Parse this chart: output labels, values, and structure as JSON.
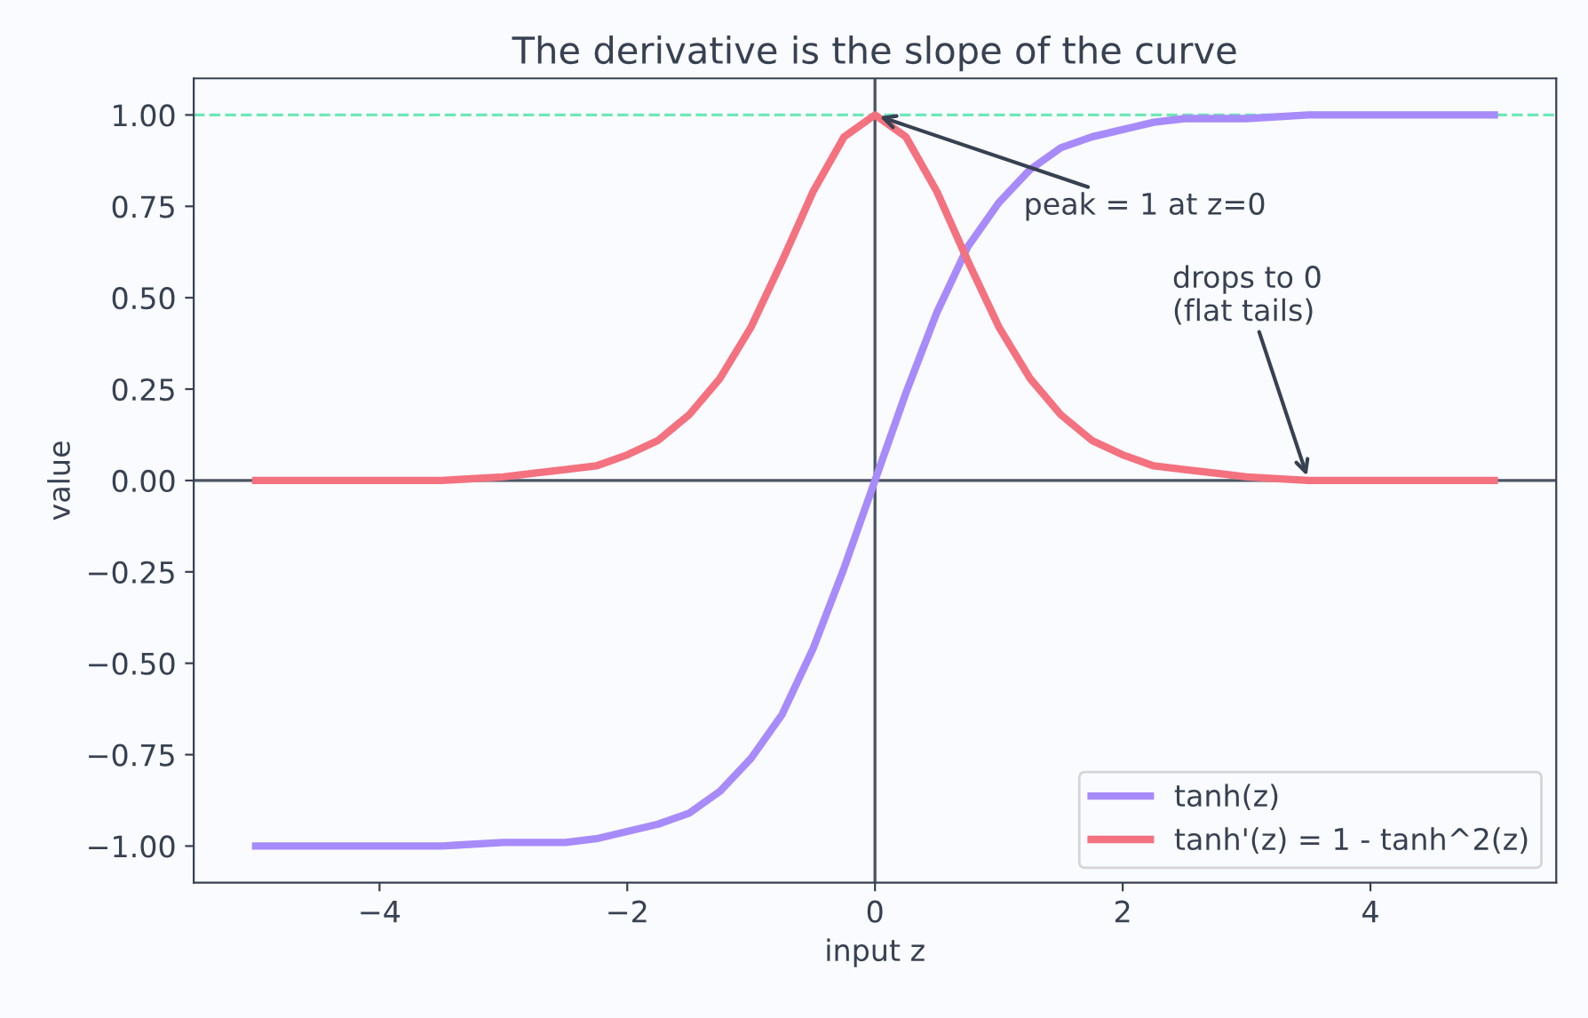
{
  "chart_data": {
    "type": "line",
    "title": "The derivative is the slope of the curve",
    "xlabel": "input z",
    "ylabel": "value",
    "x": [
      -5,
      -4.5,
      -4,
      -3.5,
      -3,
      -2.75,
      -2.5,
      -2.25,
      -2,
      -1.75,
      -1.5,
      -1.25,
      -1,
      -0.75,
      -0.5,
      -0.25,
      0,
      0.25,
      0.5,
      0.75,
      1,
      1.25,
      1.5,
      1.75,
      2,
      2.25,
      2.5,
      2.75,
      3,
      3.5,
      4,
      4.5,
      5
    ],
    "series": [
      {
        "name": "tanh(z)",
        "color": "#a78bfa",
        "values": [
          -1,
          -1,
          -1,
          -1,
          -0.99,
          -0.99,
          -0.99,
          -0.98,
          -0.96,
          -0.94,
          -0.91,
          -0.85,
          -0.76,
          -0.64,
          -0.46,
          -0.24,
          0,
          0.24,
          0.46,
          0.64,
          0.76,
          0.85,
          0.91,
          0.94,
          0.96,
          0.98,
          0.99,
          0.99,
          0.99,
          1,
          1,
          1,
          1
        ]
      },
      {
        "name": "tanh'(z) = 1 - tanh^2(z)",
        "color": "#f4717f",
        "values": [
          0,
          0,
          0,
          0,
          0.01,
          0.02,
          0.03,
          0.04,
          0.07,
          0.11,
          0.18,
          0.28,
          0.42,
          0.6,
          0.79,
          0.94,
          1,
          0.94,
          0.79,
          0.6,
          0.42,
          0.28,
          0.18,
          0.11,
          0.07,
          0.04,
          0.03,
          0.02,
          0.01,
          0,
          0,
          0,
          0
        ]
      }
    ],
    "xlim": [
      -5.5,
      5.5
    ],
    "ylim": [
      -1.1,
      1.1
    ],
    "xticks": [
      {
        "value": -4,
        "label": "−4"
      },
      {
        "value": -2,
        "label": "−2"
      },
      0,
      2,
      4
    ],
    "yticks": [
      {
        "value": -1,
        "label": "−1.00"
      },
      {
        "value": -0.75,
        "label": "−0.75"
      },
      {
        "value": -0.5,
        "label": "−0.50"
      },
      {
        "value": -0.25,
        "label": "−0.25"
      },
      {
        "value": 0,
        "label": "0.00"
      },
      {
        "value": 0.25,
        "label": "0.25"
      },
      {
        "value": 0.5,
        "label": "0.50"
      },
      {
        "value": 0.75,
        "label": "0.75"
      },
      {
        "value": 1,
        "label": "1.00"
      }
    ],
    "ref_lines": [
      {
        "axis": "y",
        "value": 1,
        "color": "#6ee7b7",
        "line_style": "dashed"
      },
      {
        "axis": "y",
        "value": 0,
        "color": "#4b5563",
        "line_style": "solid"
      },
      {
        "axis": "x",
        "value": 0,
        "color": "#4b5563",
        "line_style": "solid"
      }
    ],
    "annotations": [
      {
        "text": "peak = 1 at z=0",
        "x": 0,
        "y": 1
      },
      {
        "text": "drops to 0\n(flat tails)",
        "x": 3.5,
        "y": 0
      }
    ],
    "legend": "bottom right",
    "grid": false,
    "marker": "none",
    "line_style": "solid"
  }
}
